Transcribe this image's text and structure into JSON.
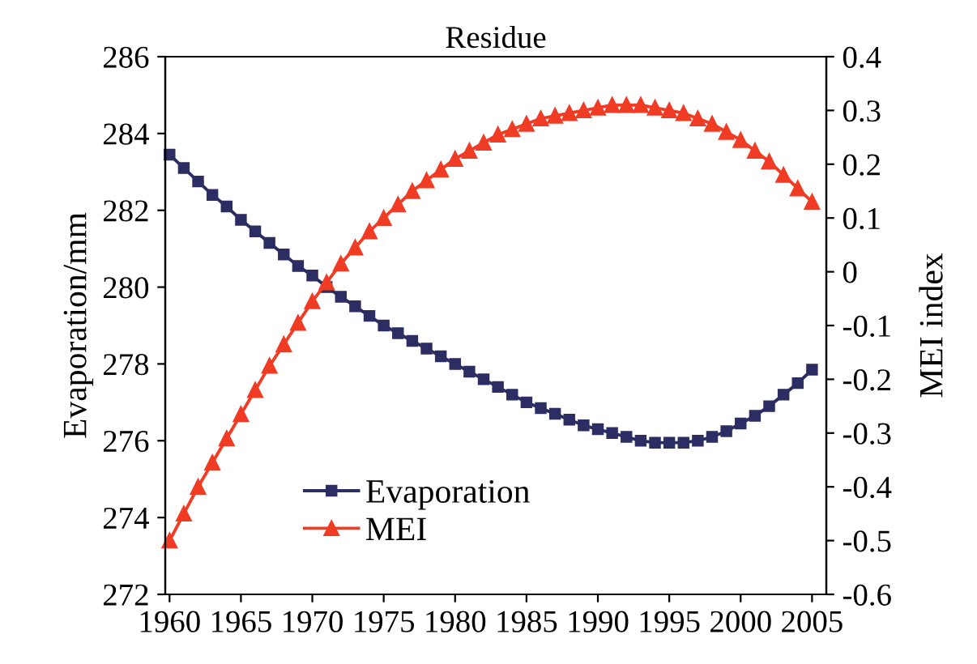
{
  "chart_data": {
    "type": "line",
    "title": "Residue",
    "ylabel": "Evaporation/mm",
    "y2label": "MEI index",
    "x": [
      1960,
      1961,
      1962,
      1963,
      1964,
      1965,
      1966,
      1967,
      1968,
      1969,
      1970,
      1971,
      1972,
      1973,
      1974,
      1975,
      1976,
      1977,
      1978,
      1979,
      1980,
      1981,
      1982,
      1983,
      1984,
      1985,
      1986,
      1987,
      1988,
      1989,
      1990,
      1991,
      1992,
      1993,
      1994,
      1995,
      1996,
      1997,
      1998,
      1999,
      2000,
      2001,
      2002,
      2003,
      2004,
      2005
    ],
    "series": [
      {
        "name": "Evaporation",
        "color": "#2b2d63",
        "marker": "square",
        "values": [
          283.45,
          283.1,
          282.75,
          282.4,
          282.1,
          281.75,
          281.45,
          281.15,
          280.85,
          280.55,
          280.3,
          280.0,
          279.75,
          279.5,
          279.25,
          279.0,
          278.8,
          278.6,
          278.4,
          278.2,
          278.0,
          277.8,
          277.6,
          277.4,
          277.2,
          277.0,
          276.85,
          276.7,
          276.55,
          276.4,
          276.3,
          276.2,
          276.1,
          276.0,
          275.95,
          275.95,
          275.95,
          276.0,
          276.1,
          276.25,
          276.45,
          276.65,
          276.9,
          277.2,
          277.5,
          277.85
        ]
      },
      {
        "name": "MEI",
        "color": "#f03c24",
        "marker": "triangle",
        "axis": "y2",
        "values": [
          -0.5,
          -0.45,
          -0.4,
          -0.355,
          -0.31,
          -0.265,
          -0.22,
          -0.175,
          -0.135,
          -0.095,
          -0.055,
          -0.02,
          0.015,
          0.045,
          0.075,
          0.1,
          0.125,
          0.15,
          0.17,
          0.19,
          0.21,
          0.225,
          0.24,
          0.255,
          0.265,
          0.275,
          0.285,
          0.29,
          0.295,
          0.3,
          0.305,
          0.31,
          0.31,
          0.31,
          0.305,
          0.3,
          0.295,
          0.285,
          0.275,
          0.26,
          0.245,
          0.225,
          0.205,
          0.18,
          0.155,
          0.13
        ]
      }
    ],
    "xlim": [
      1959.7,
      2006.0
    ],
    "xticks": [
      1960,
      1965,
      1970,
      1975,
      1980,
      1985,
      1990,
      1995,
      2000,
      2005
    ],
    "ylim": [
      272,
      286
    ],
    "yticks": [
      272,
      274,
      276,
      278,
      280,
      282,
      284,
      286
    ],
    "y2lim": [
      -0.6,
      0.4
    ],
    "y2ticks": [
      {
        "value": -0.6,
        "label": "-0.6"
      },
      {
        "value": -0.5,
        "label": "-0.5"
      },
      {
        "value": -0.4,
        "label": "-0.4"
      },
      {
        "value": -0.3,
        "label": "-0.3"
      },
      {
        "value": -0.2,
        "label": "-0.2"
      },
      {
        "value": -0.1,
        "label": "-0.1"
      },
      0,
      0.1,
      0.2,
      0.3,
      0.4
    ],
    "grid": false,
    "legend": "bottom left",
    "line_style": "solid"
  }
}
